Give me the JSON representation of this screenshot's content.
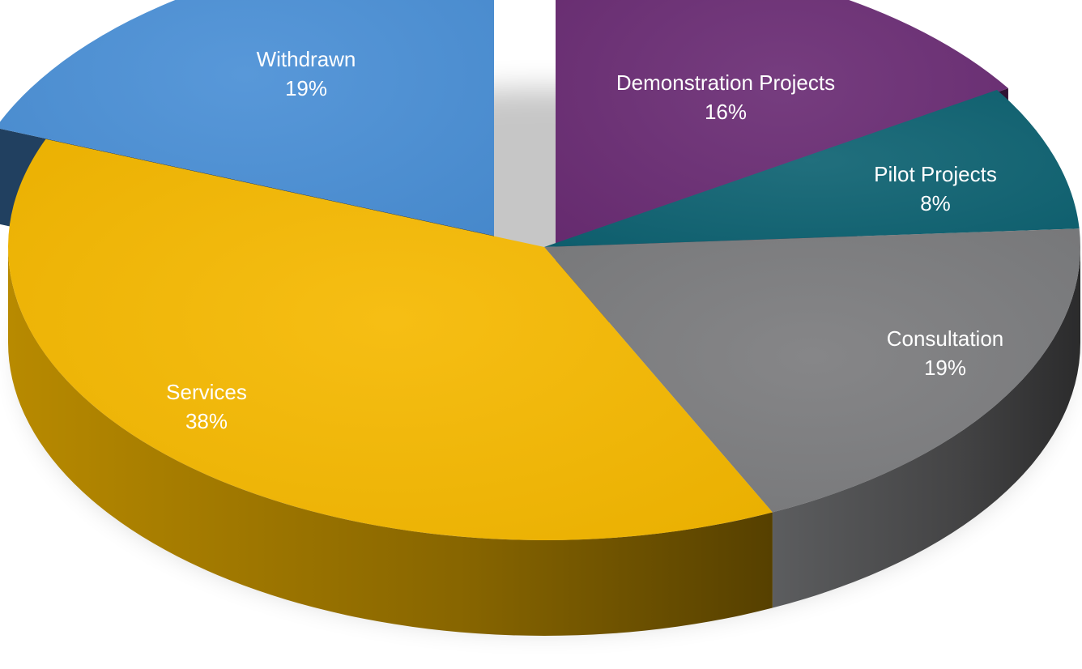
{
  "chart_data": {
    "type": "pie",
    "style": "3d-exploded",
    "slices": [
      {
        "label": "Demonstration Projects",
        "value": 16,
        "value_label": "16%",
        "color": "#6a2c74",
        "exploded": true
      },
      {
        "label": "Pilot Projects",
        "value": 8,
        "value_label": "8%",
        "color": "#0e6272",
        "exploded": false
      },
      {
        "label": "Consultation",
        "value": 19,
        "value_label": "19%",
        "color": "#7b7c7e",
        "exploded": false
      },
      {
        "label": "Services",
        "value": 38,
        "value_label": "38%",
        "color": "#f5b800",
        "exploded": false
      },
      {
        "label": "Withdrawn",
        "value": 19,
        "value_label": "19%",
        "color": "#4a8fd6",
        "exploded": true
      }
    ]
  }
}
